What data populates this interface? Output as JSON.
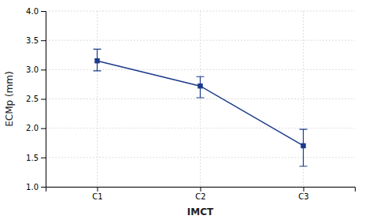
{
  "chart_data": {
    "type": "line",
    "categories": [
      "C1",
      "C2",
      "C3"
    ],
    "values": [
      3.15,
      2.72,
      1.7
    ],
    "err_lower": [
      0.17,
      0.2,
      0.35
    ],
    "err_upper": [
      0.2,
      0.16,
      0.28
    ],
    "color": "#1a3a8a",
    "marker": "square",
    "line_style": "solid",
    "xlabel": "IMCT",
    "ylabel": "ECMp (mm)",
    "ylim": [
      1.0,
      4.0
    ],
    "yticks": [
      {
        "value": 1.0,
        "label": "1.0"
      },
      1.5,
      {
        "value": 2.0,
        "label": "2.0"
      },
      2.5,
      {
        "value": 3.0,
        "label": "3.0"
      },
      3.5,
      {
        "value": 4.0,
        "label": "4.0"
      }
    ],
    "grid": true
  }
}
